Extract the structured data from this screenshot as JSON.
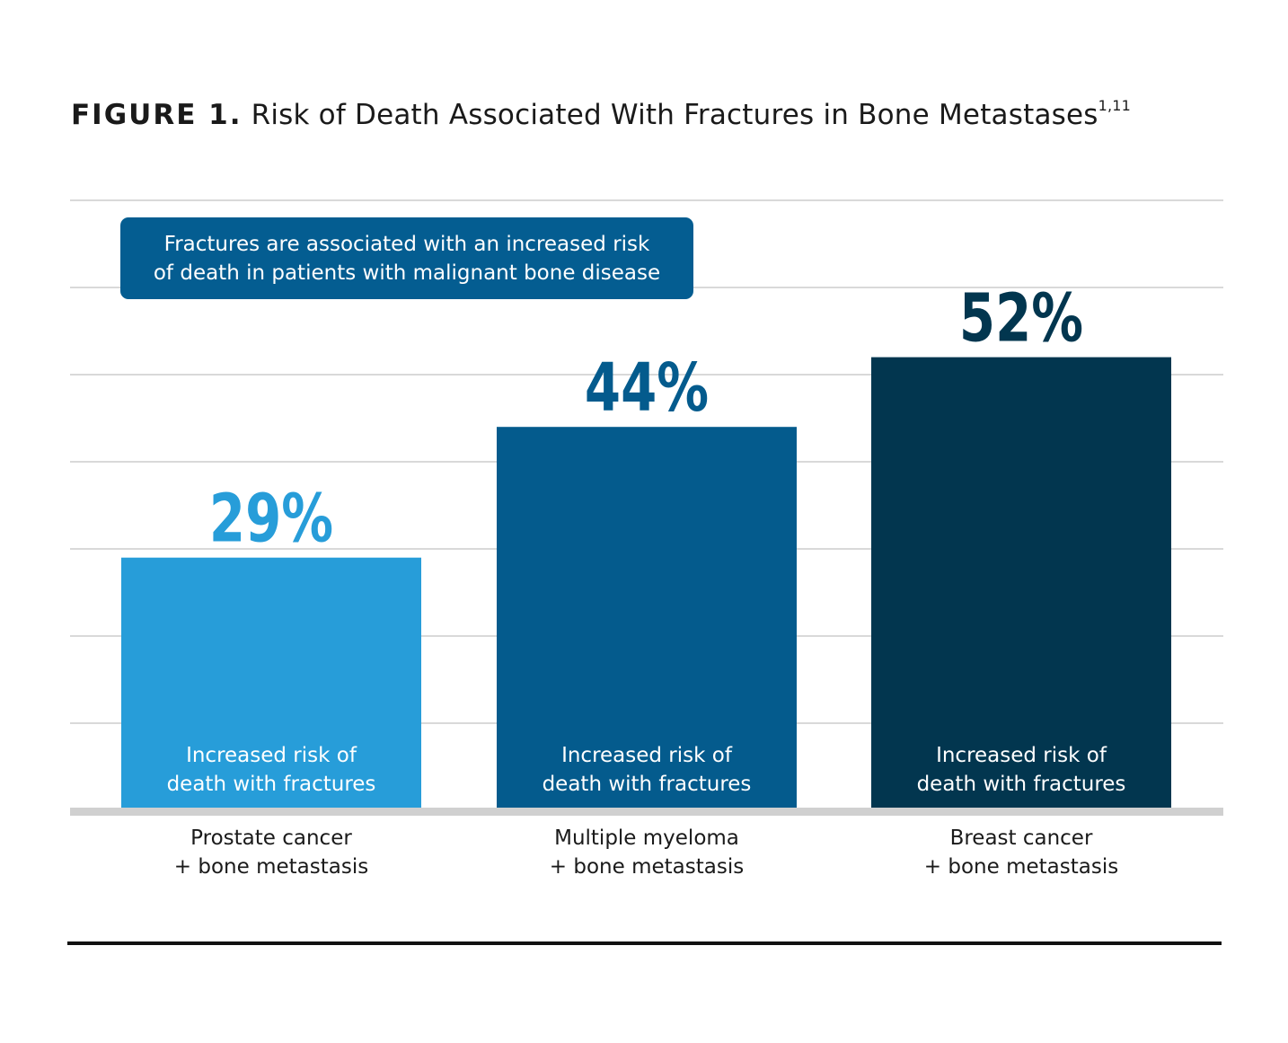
{
  "title": {
    "figure_label": "FIGURE 1.",
    "text": "Risk of Death Associated With Fractures in Bone Metastases",
    "superscript": "1,11"
  },
  "callout": {
    "line1": "Fractures are associated with an increased risk",
    "line2": "of death in patients with malignant bone disease"
  },
  "chart_data": {
    "type": "bar",
    "title": "Risk of Death Associated With Fractures in Bone Metastases",
    "categories": [
      [
        "Prostate cancer",
        "+ bone metastasis"
      ],
      [
        "Multiple myeloma",
        "+ bone metastasis"
      ],
      [
        "Breast cancer",
        "+ bone metastasis"
      ]
    ],
    "values": [
      29,
      44,
      52
    ],
    "value_labels": [
      "29%",
      "44%",
      "52%"
    ],
    "bar_inner_label": [
      "Increased risk of",
      "death with fractures"
    ],
    "colors": [
      "#279dd9",
      "#045b8d",
      "#02364f"
    ],
    "label_colors": [
      "#279dd9",
      "#045b8d",
      "#02364f"
    ],
    "ylim": [
      0,
      70
    ],
    "grid_step": 10,
    "grid": true,
    "xlabel": "",
    "ylabel": ""
  }
}
